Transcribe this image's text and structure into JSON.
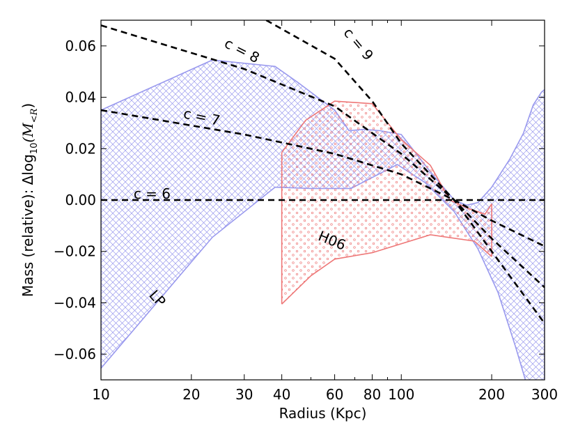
{
  "chart_data": {
    "type": "line",
    "xscale": "log",
    "xlim": [
      10,
      300
    ],
    "ylim": [
      -0.07,
      0.07
    ],
    "xlabel": "Radius (Kpc)",
    "ylabel_prefix": "Mass (relative): Δlog",
    "ylabel_sub10": "10",
    "ylabel_mid": "(M",
    "ylabel_subR": "<R",
    "ylabel_close": ")",
    "xticks": [
      {
        "value": 10,
        "label": "10"
      },
      {
        "value": 20,
        "label": "20"
      },
      {
        "value": 30,
        "label": "30"
      },
      {
        "value": 40,
        "label": "40"
      },
      {
        "value": 60,
        "label": "60"
      },
      {
        "value": 80,
        "label": "80"
      },
      {
        "value": 100,
        "label": "100"
      },
      {
        "value": 200,
        "label": "200"
      },
      {
        "value": 300,
        "label": "300"
      }
    ],
    "yticks": [
      {
        "value": 0.06,
        "label": "0.06"
      },
      {
        "value": 0.04,
        "label": "0.04"
      },
      {
        "value": 0.02,
        "label": "0.02"
      },
      {
        "value": 0.0,
        "label": "0.00"
      },
      {
        "value": -0.02,
        "label": "−0.02"
      },
      {
        "value": -0.04,
        "label": "−0.04"
      },
      {
        "value": -0.06,
        "label": "−0.06"
      }
    ],
    "minor_xticks": [
      50,
      70,
      90
    ],
    "regions": [
      {
        "name": "LP",
        "color": "#9999ee",
        "hatch": "crosshatch",
        "upper": [
          [
            10,
            0.035
          ],
          [
            23.5,
            0.0545
          ],
          [
            38,
            0.052
          ],
          [
            45,
            0.046
          ],
          [
            60,
            0.035
          ],
          [
            67,
            0.027
          ],
          [
            75,
            0.0275
          ],
          [
            85,
            0.027
          ],
          [
            100,
            0.0255
          ],
          [
            125,
            0.011
          ],
          [
            150,
            0.0
          ],
          [
            165,
            -0.002
          ],
          [
            180,
            -0.001
          ],
          [
            200,
            0.005
          ],
          [
            230,
            0.016
          ],
          [
            255,
            0.026
          ],
          [
            275,
            0.037
          ],
          [
            293,
            0.042
          ],
          [
            300,
            0.043
          ]
        ],
        "lower": [
          [
            10,
            -0.0655
          ],
          [
            23.5,
            -0.0145
          ],
          [
            38,
            0.005
          ],
          [
            50,
            0.0045
          ],
          [
            68,
            0.0045
          ],
          [
            97,
            0.0138
          ],
          [
            120,
            0.0068
          ],
          [
            150,
            -0.0045
          ],
          [
            180,
            -0.019
          ],
          [
            210,
            -0.036
          ],
          [
            240,
            -0.057
          ],
          [
            262,
            -0.072
          ]
        ],
        "close_at_x": 300
      },
      {
        "name": "H06",
        "color": "#ee7777",
        "hatch": "dots",
        "upper": [
          [
            40,
            0.0185
          ],
          [
            48,
            0.031
          ],
          [
            60,
            0.0385
          ],
          [
            80,
            0.0375
          ],
          [
            100,
            0.0235
          ],
          [
            125,
            0.0135
          ],
          [
            145,
            0.0
          ],
          [
            165,
            -0.003
          ],
          [
            190,
            -0.0055
          ],
          [
            200,
            -0.0015
          ]
        ],
        "lower": [
          [
            40,
            -0.0405
          ],
          [
            50,
            -0.0295
          ],
          [
            60,
            -0.023
          ],
          [
            80,
            -0.0205
          ],
          [
            125,
            -0.0135
          ],
          [
            175,
            -0.016
          ],
          [
            200,
            -0.022
          ]
        ]
      }
    ],
    "series": [
      {
        "name": "c = 6",
        "style": "dashed",
        "color": "#000000",
        "points": [
          [
            10,
            0.0
          ],
          [
            300,
            0.0
          ]
        ]
      },
      {
        "name": "c = 7",
        "style": "dashed",
        "color": "#000000",
        "points": [
          [
            10,
            0.035
          ],
          [
            30,
            0.0255
          ],
          [
            60,
            0.018
          ],
          [
            100,
            0.01
          ],
          [
            150,
            0.0
          ],
          [
            200,
            -0.008
          ],
          [
            300,
            -0.018
          ]
        ]
      },
      {
        "name": "c = 8",
        "style": "dashed",
        "color": "#000000",
        "points": [
          [
            10,
            0.068
          ],
          [
            30,
            0.051
          ],
          [
            60,
            0.0365
          ],
          [
            100,
            0.018
          ],
          [
            150,
            0.0
          ],
          [
            200,
            -0.015
          ],
          [
            300,
            -0.034
          ]
        ]
      },
      {
        "name": "c = 9",
        "style": "dashed",
        "color": "#000000",
        "points": [
          [
            35.5,
            0.07
          ],
          [
            60,
            0.055
          ],
          [
            80,
            0.0385
          ],
          [
            100,
            0.022
          ],
          [
            150,
            0.0
          ],
          [
            200,
            -0.02
          ],
          [
            300,
            -0.048
          ]
        ]
      }
    ],
    "annotations": [
      {
        "text": "c = 6",
        "x": 14.8,
        "y": 0.0005,
        "rotation": 0
      },
      {
        "text": "c = 7",
        "x": 21.5,
        "y": 0.0305,
        "rotation": 12
      },
      {
        "text": "c = 8",
        "x": 29,
        "y": 0.0565,
        "rotation": 27
      },
      {
        "text": "c = 9",
        "x": 70,
        "y": 0.0595,
        "rotation": 50
      },
      {
        "text": "H06",
        "x": 58,
        "y": -0.0175,
        "rotation": 22
      },
      {
        "text": "LP",
        "x": 15,
        "y": -0.0395,
        "rotation": 48
      }
    ]
  }
}
